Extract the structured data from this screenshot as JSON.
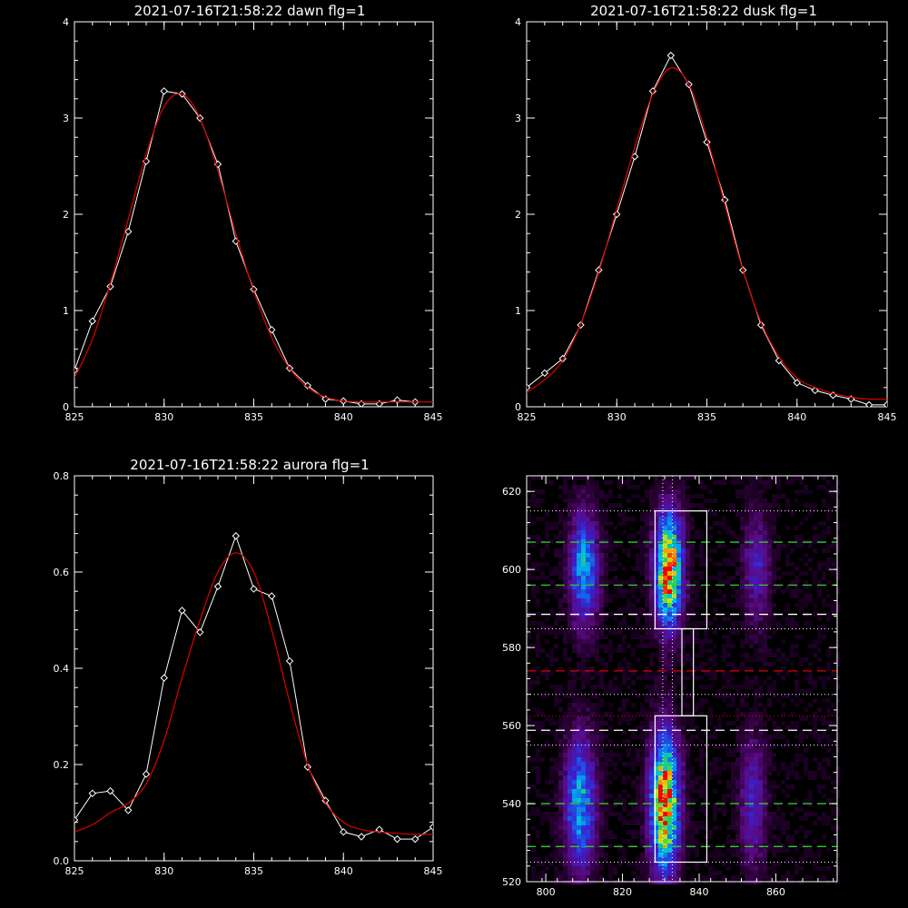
{
  "colors": {
    "background": "#000000",
    "axes": "#ffffff",
    "data": "#ffffff",
    "fit": "#e00000",
    "green_line": "#2ecc2e",
    "red_line": "#e00000",
    "box": "#ffffff"
  },
  "chart_data": [
    {
      "type": "line",
      "title": "2021-07-16T21:58:22 dawn flg=1",
      "xlim": [
        825,
        845
      ],
      "ylim": [
        0,
        4
      ],
      "xticks": [
        "825",
        "830",
        "835",
        "840",
        "845"
      ],
      "yticks": [
        "0",
        "1",
        "2",
        "3",
        "4"
      ],
      "series": [
        {
          "x": [
            825,
            826,
            827,
            828,
            829,
            830,
            831,
            832,
            833,
            834,
            835,
            836,
            837,
            838,
            839,
            840,
            841,
            842,
            843,
            844
          ],
          "y": [
            0.38,
            0.89,
            1.25,
            1.82,
            2.55,
            3.28,
            3.25,
            3.0,
            2.52,
            1.72,
            1.22,
            0.8,
            0.4,
            0.22,
            0.08,
            0.06,
            0.03,
            0.03,
            0.07,
            0.05
          ],
          "style": "markers"
        },
        {
          "x": [
            825,
            826,
            827,
            828,
            829,
            830,
            831,
            832,
            833,
            834,
            835,
            836,
            837,
            838,
            839,
            840,
            841,
            842,
            843,
            844,
            845
          ],
          "y": [
            0.3,
            0.7,
            1.28,
            1.95,
            2.62,
            3.12,
            3.25,
            3.0,
            2.45,
            1.8,
            1.2,
            0.72,
            0.4,
            0.2,
            0.1,
            0.06,
            0.05,
            0.05,
            0.05,
            0.05,
            0.05
          ],
          "style": "fit"
        }
      ]
    },
    {
      "type": "line",
      "title": "2021-07-16T21:58:22 dusk flg=1",
      "xlim": [
        825,
        845
      ],
      "ylim": [
        0,
        4
      ],
      "xticks": [
        "825",
        "830",
        "835",
        "840",
        "845"
      ],
      "yticks": [
        "0",
        "1",
        "2",
        "3",
        "4"
      ],
      "series": [
        {
          "x": [
            825,
            826,
            827,
            828,
            829,
            830,
            831,
            832,
            833,
            834,
            835,
            836,
            837,
            838,
            839,
            840,
            841,
            842,
            843,
            844,
            845
          ],
          "y": [
            0.2,
            0.35,
            0.5,
            0.85,
            1.42,
            2.0,
            2.6,
            3.28,
            3.65,
            3.35,
            2.75,
            2.15,
            1.42,
            0.85,
            0.48,
            0.25,
            0.17,
            0.12,
            0.08,
            0.02,
            0.02
          ],
          "style": "markers"
        },
        {
          "x": [
            825,
            826,
            827,
            828,
            829,
            830,
            831,
            832,
            833,
            834,
            835,
            836,
            837,
            838,
            839,
            840,
            841,
            842,
            843,
            844,
            845
          ],
          "y": [
            0.15,
            0.28,
            0.48,
            0.86,
            1.4,
            2.05,
            2.7,
            3.25,
            3.52,
            3.35,
            2.8,
            2.1,
            1.42,
            0.88,
            0.52,
            0.3,
            0.2,
            0.14,
            0.1,
            0.08,
            0.08
          ],
          "style": "fit"
        }
      ]
    },
    {
      "type": "line",
      "title": "2021-07-16T21:58:22 aurora flg=1",
      "xlim": [
        825,
        845
      ],
      "ylim": [
        0,
        0.8
      ],
      "xticks": [
        "825",
        "830",
        "835",
        "840",
        "845"
      ],
      "yticks": [
        "0.0",
        "0.2",
        "0.4",
        "0.6",
        "0.8"
      ],
      "series": [
        {
          "x": [
            825,
            826,
            827,
            828,
            829,
            830,
            831,
            832,
            833,
            834,
            835,
            836,
            837,
            838,
            839,
            840,
            841,
            842,
            843,
            844,
            845
          ],
          "y": [
            0.085,
            0.14,
            0.145,
            0.105,
            0.18,
            0.38,
            0.52,
            0.475,
            0.57,
            0.675,
            0.565,
            0.55,
            0.415,
            0.195,
            0.125,
            0.06,
            0.05,
            0.065,
            0.045,
            0.045,
            0.07
          ],
          "style": "markers"
        },
        {
          "x": [
            825,
            826,
            827,
            828,
            829,
            830,
            831,
            832,
            833,
            834,
            835,
            836,
            837,
            838,
            839,
            840,
            841,
            842,
            843,
            844,
            845
          ],
          "y": [
            0.06,
            0.075,
            0.1,
            0.12,
            0.16,
            0.25,
            0.38,
            0.5,
            0.6,
            0.64,
            0.6,
            0.48,
            0.33,
            0.2,
            0.12,
            0.08,
            0.065,
            0.06,
            0.057,
            0.055,
            0.055
          ],
          "style": "fit"
        }
      ]
    },
    {
      "type": "heatmap",
      "xlim": [
        795,
        876
      ],
      "ylim": [
        520,
        624
      ],
      "xticks": [
        "800",
        "820",
        "840",
        "860"
      ],
      "yticks": [
        "520",
        "540",
        "560",
        "580",
        "600",
        "620"
      ],
      "blobs": [
        {
          "x": 810,
          "y": 600,
          "sx": 2.6,
          "sy": 10,
          "amp": 0.55
        },
        {
          "x": 809,
          "y": 540,
          "sx": 2.8,
          "sy": 12,
          "amp": 0.55
        },
        {
          "x": 832,
          "y": 600,
          "sx": 2.5,
          "sy": 10,
          "amp": 0.95
        },
        {
          "x": 831,
          "y": 540,
          "sx": 2.6,
          "sy": 12,
          "amp": 1.0
        },
        {
          "x": 855,
          "y": 600,
          "sx": 2.4,
          "sy": 10,
          "amp": 0.28
        },
        {
          "x": 854,
          "y": 540,
          "sx": 2.4,
          "sy": 12,
          "amp": 0.3
        }
      ],
      "boxes": [
        {
          "x": [
            828.5,
            842.0
          ],
          "y": [
            584.8,
            615.0
          ]
        },
        {
          "x": [
            828.5,
            842.0
          ],
          "y": [
            525.0,
            562.5
          ]
        },
        {
          "x": [
            835.5,
            838.5
          ],
          "y": [
            562.5,
            584.8
          ]
        }
      ],
      "hlines": [
        {
          "y": 615.0,
          "style": "dotted",
          "color": "white"
        },
        {
          "y": 607.0,
          "style": "dashed",
          "color": "green"
        },
        {
          "y": 596.0,
          "style": "dashed",
          "color": "green"
        },
        {
          "y": 588.5,
          "style": "dashed",
          "color": "white"
        },
        {
          "y": 584.8,
          "style": "dotted",
          "color": "white"
        },
        {
          "y": 574.0,
          "style": "dashed",
          "color": "red"
        },
        {
          "y": 568.0,
          "style": "dotted",
          "color": "white"
        },
        {
          "y": 562.5,
          "style": "dotted",
          "color": "red"
        },
        {
          "y": 558.8,
          "style": "dashed",
          "color": "white"
        },
        {
          "y": 555.0,
          "style": "dotted",
          "color": "white"
        },
        {
          "y": 540.0,
          "style": "dashed",
          "color": "green"
        },
        {
          "y": 529.0,
          "style": "dashed",
          "color": "green"
        },
        {
          "y": 525.0,
          "style": "dotted",
          "color": "white"
        }
      ],
      "vlines": [
        {
          "x": 830.5,
          "style": "dotted",
          "color": "white"
        },
        {
          "x": 833.0,
          "style": "dotted",
          "color": "white"
        }
      ]
    }
  ]
}
